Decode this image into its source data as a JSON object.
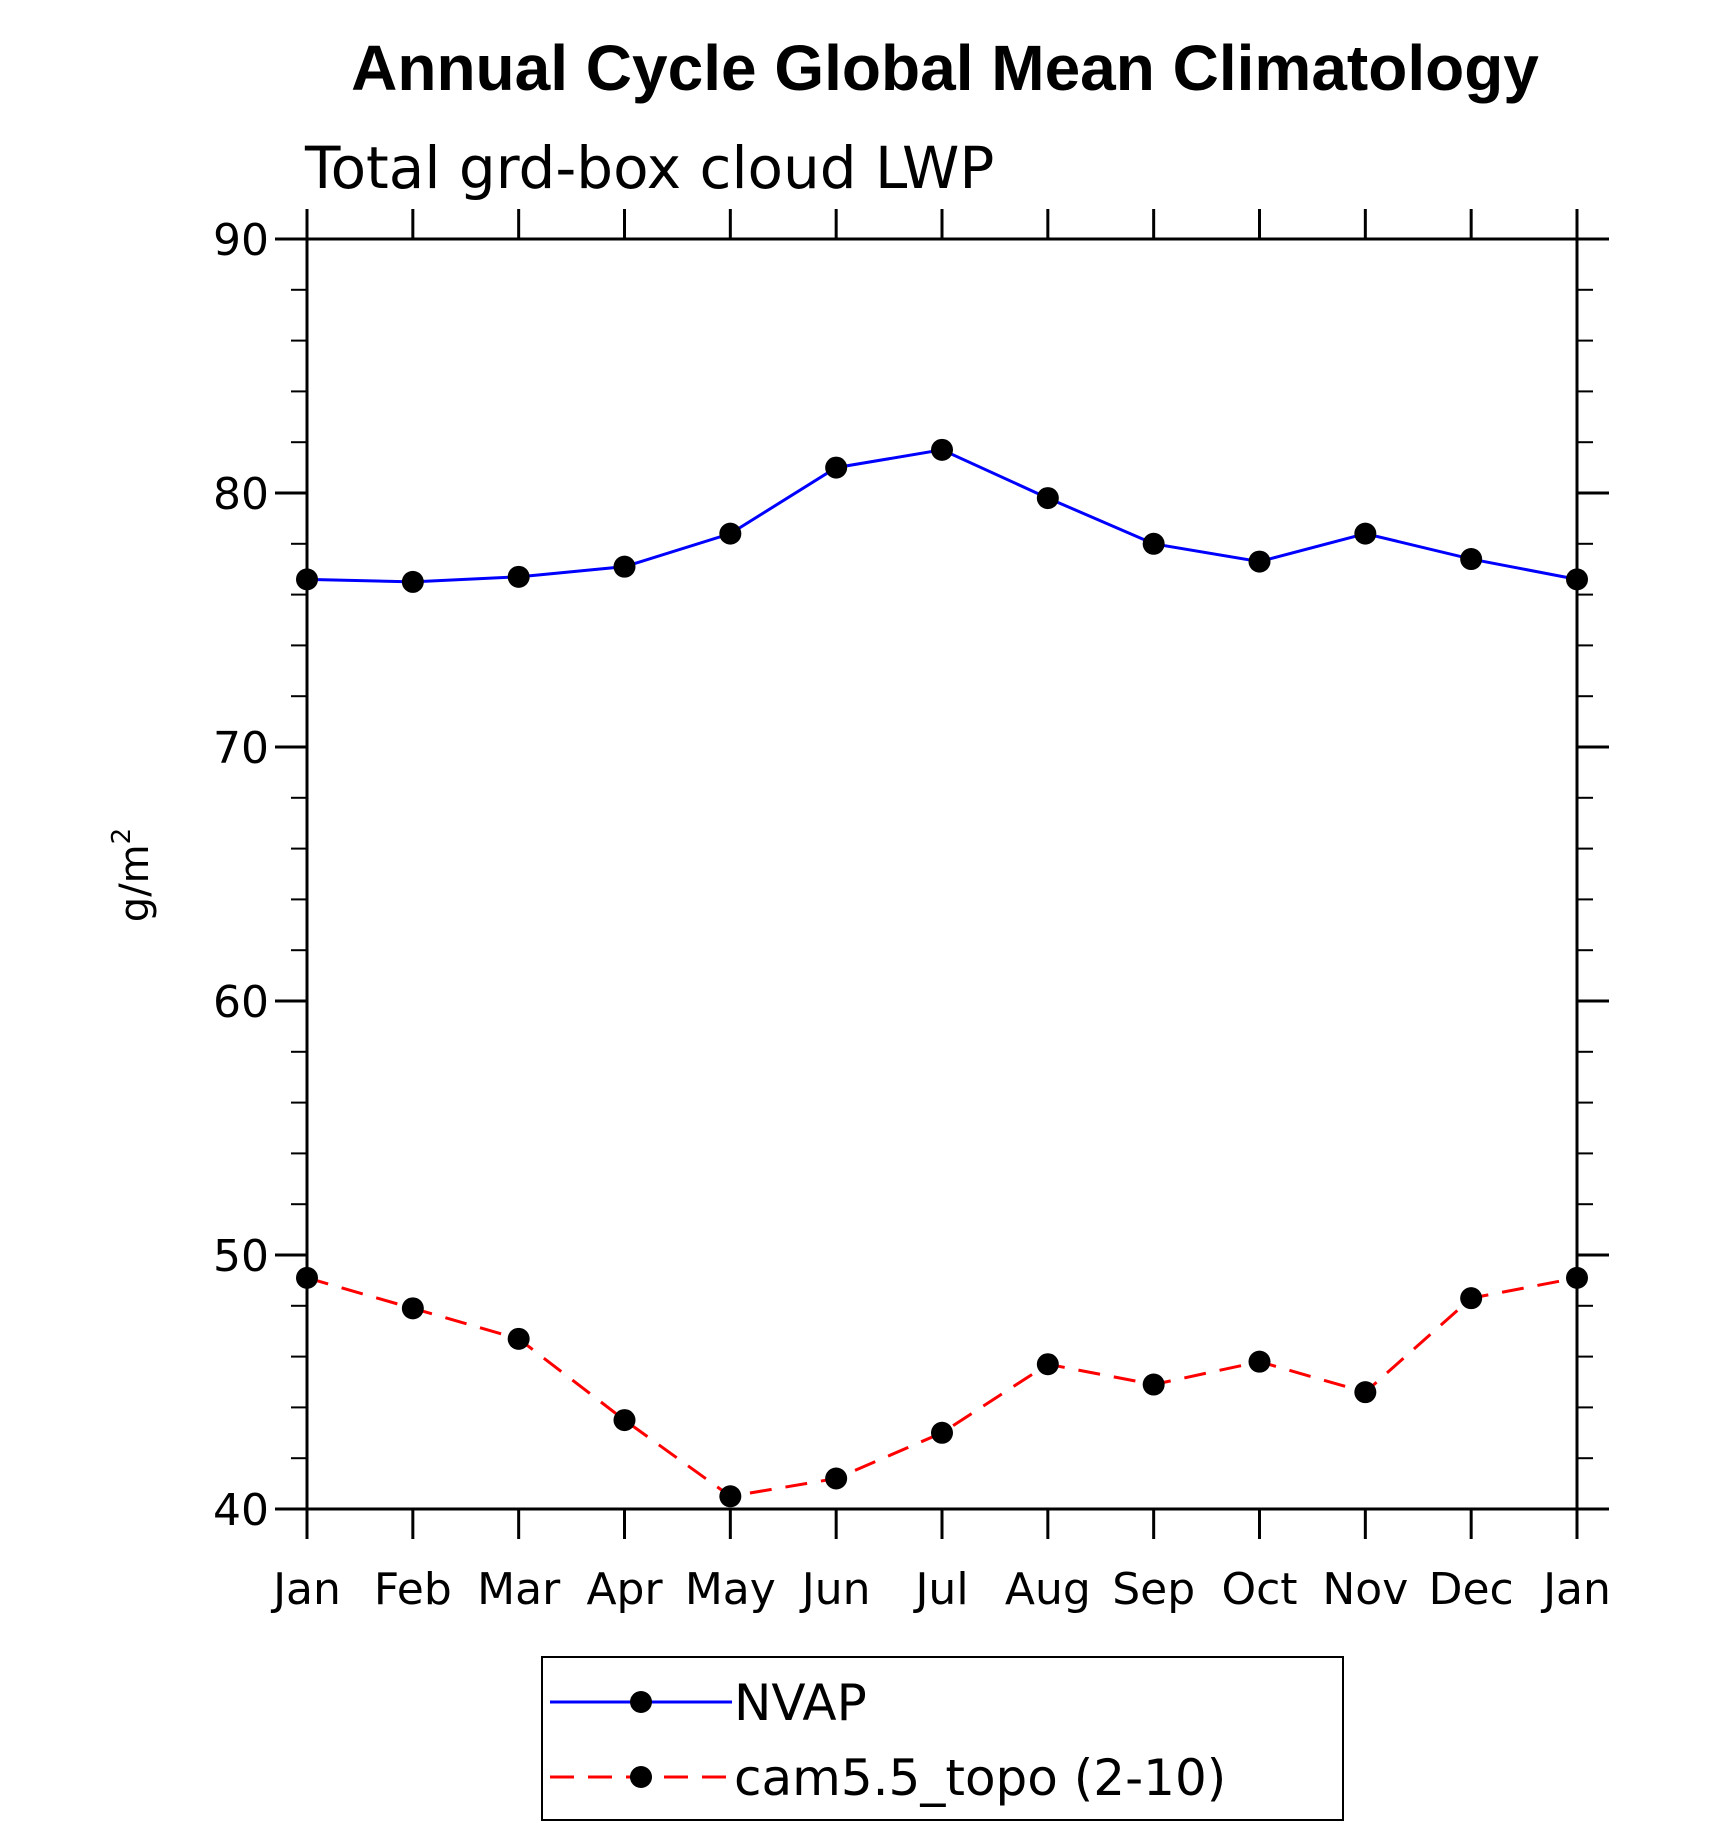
{
  "chart_data": {
    "type": "line",
    "title": "Annual Cycle Global Mean Climatology",
    "subtitle": "Total grd-box cloud LWP",
    "xlabel": "",
    "ylabel": "g/m",
    "ylabel_superscript": "2",
    "ylim": [
      40,
      90
    ],
    "yticks": [
      40,
      50,
      60,
      70,
      80,
      90
    ],
    "yminor_step": 2,
    "categories": [
      "Jan",
      "Feb",
      "Mar",
      "Apr",
      "May",
      "Jun",
      "Jul",
      "Aug",
      "Sep",
      "Oct",
      "Nov",
      "Dec",
      "Jan"
    ],
    "grid": false,
    "legend_position": "bottom-center",
    "series": [
      {
        "name": "NVAP",
        "color": "#0000ff",
        "line_style": "solid",
        "marker": "filled-circle",
        "marker_color": "#000000",
        "values": [
          76.6,
          76.5,
          76.7,
          77.1,
          78.4,
          81.0,
          81.7,
          79.8,
          78.0,
          77.3,
          78.4,
          77.4,
          76.6
        ]
      },
      {
        "name": "cam5.5_topo (2-10)",
        "color": "#ff0000",
        "line_style": "dashed",
        "marker": "filled-circle",
        "marker_color": "#000000",
        "values": [
          49.1,
          47.9,
          46.7,
          43.5,
          40.5,
          41.2,
          43.0,
          45.7,
          44.9,
          45.8,
          44.6,
          48.3,
          49.1
        ]
      }
    ]
  }
}
